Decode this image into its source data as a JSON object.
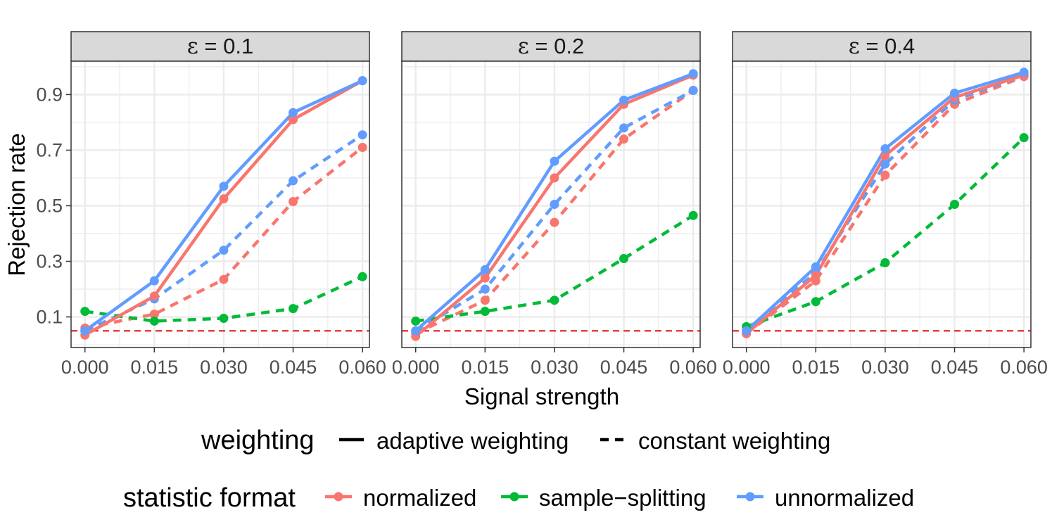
{
  "chart_data": {
    "type": "line",
    "facet_label_prefix": "ε",
    "facets": [
      {
        "label": "ε = 0.1",
        "epsilon": "0.1",
        "series": [
          {
            "statistic": "normalized",
            "weighting": "adaptive weighting",
            "values": [
              0.035,
              0.175,
              0.525,
              0.81,
              0.95
            ]
          },
          {
            "statistic": "unnormalized",
            "weighting": "adaptive weighting",
            "values": [
              0.05,
              0.23,
              0.57,
              0.835,
              0.95
            ]
          },
          {
            "statistic": "normalized",
            "weighting": "constant weighting",
            "values": [
              0.06,
              0.11,
              0.235,
              0.515,
              0.71
            ]
          },
          {
            "statistic": "unnormalized",
            "weighting": "constant weighting",
            "values": [
              0.05,
              0.165,
              0.34,
              0.59,
              0.755
            ]
          },
          {
            "statistic": "sample−splitting",
            "weighting": "constant weighting",
            "values": [
              0.12,
              0.085,
              0.095,
              0.13,
              0.245
            ]
          }
        ]
      },
      {
        "label": "ε = 0.2",
        "epsilon": "0.2",
        "series": [
          {
            "statistic": "normalized",
            "weighting": "adaptive weighting",
            "values": [
              0.03,
              0.24,
              0.6,
              0.865,
              0.97
            ]
          },
          {
            "statistic": "unnormalized",
            "weighting": "adaptive weighting",
            "values": [
              0.05,
              0.27,
              0.66,
              0.88,
              0.975
            ]
          },
          {
            "statistic": "normalized",
            "weighting": "constant weighting",
            "values": [
              0.04,
              0.16,
              0.44,
              0.74,
              0.915
            ]
          },
          {
            "statistic": "unnormalized",
            "weighting": "constant weighting",
            "values": [
              0.05,
              0.2,
              0.505,
              0.78,
              0.915
            ]
          },
          {
            "statistic": "sample−splitting",
            "weighting": "constant weighting",
            "values": [
              0.085,
              0.12,
              0.16,
              0.31,
              0.465
            ]
          }
        ]
      },
      {
        "label": "ε = 0.4",
        "epsilon": "0.4",
        "series": [
          {
            "statistic": "normalized",
            "weighting": "adaptive weighting",
            "values": [
              0.04,
              0.25,
              0.68,
              0.89,
              0.97
            ]
          },
          {
            "statistic": "unnormalized",
            "weighting": "adaptive weighting",
            "values": [
              0.05,
              0.28,
              0.705,
              0.905,
              0.98
            ]
          },
          {
            "statistic": "normalized",
            "weighting": "constant weighting",
            "values": [
              0.04,
              0.23,
              0.61,
              0.865,
              0.965
            ]
          },
          {
            "statistic": "unnormalized",
            "weighting": "constant weighting",
            "values": [
              0.05,
              0.26,
              0.65,
              0.88,
              0.97
            ]
          },
          {
            "statistic": "sample−splitting",
            "weighting": "constant weighting",
            "values": [
              0.065,
              0.155,
              0.295,
              0.505,
              0.745
            ]
          }
        ]
      }
    ],
    "x": [
      0.0,
      0.015,
      0.03,
      0.045,
      0.06
    ],
    "x_tick_labels": [
      "0.000",
      "0.015",
      "0.030",
      "0.045",
      "0.060"
    ],
    "y_ticks": [
      0.1,
      0.3,
      0.5,
      0.7,
      0.9
    ],
    "y_tick_labels": [
      "0.1",
      "0.3",
      "0.5",
      "0.7",
      "0.9"
    ],
    "xlim": [
      -0.003,
      0.0615
    ],
    "ylim": [
      -0.01,
      1.02
    ],
    "xlabel": "Signal strength",
    "ylabel": "Rejection rate",
    "reference_line": {
      "y": 0.05,
      "color": "#e31a1c",
      "style": "dashed"
    },
    "grid": true,
    "legend_position": "bottom",
    "legends": {
      "weighting": {
        "title": "weighting",
        "entries": [
          {
            "label": "adaptive weighting",
            "style": "solid"
          },
          {
            "label": "constant weighting",
            "style": "dashed"
          }
        ]
      },
      "statistic": {
        "title": "statistic format",
        "entries": [
          {
            "label": "normalized",
            "color": "#f8766d"
          },
          {
            "label": "sample−splitting",
            "color": "#00ba38"
          },
          {
            "label": "unnormalized",
            "color": "#619cff"
          }
        ]
      }
    },
    "colors": {
      "normalized": "#f8766d",
      "sample−splitting": "#00ba38",
      "unnormalized": "#619cff",
      "strip_fill": "#d9d9d9",
      "grid": "#ebebeb",
      "axis_text": "#4d4d4d"
    }
  }
}
